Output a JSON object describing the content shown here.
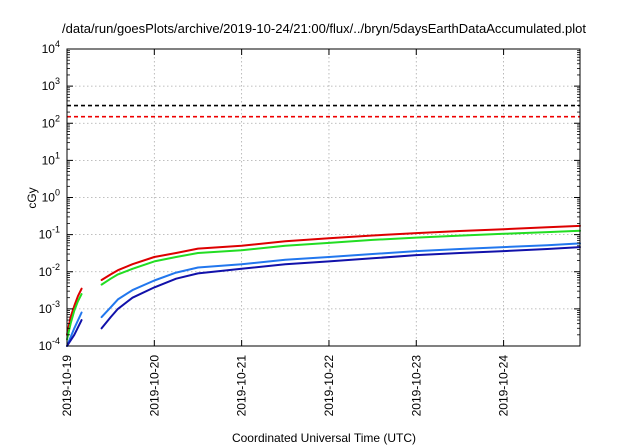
{
  "chart_data": {
    "type": "line",
    "title": "/data/run/goesPlots/archive/2019-10-24/21:00/flux/../bryn/5daysEarthDataAccumulated.plot",
    "xlabel": "Coordinated Universal Time (UTC)",
    "ylabel": "cGy",
    "y_scale": "log",
    "ylim": [
      0.0001,
      10000
    ],
    "xlim": [
      "2019-10-19T00:00",
      "2019-10-24T21:00"
    ],
    "grid": true,
    "x_ticks": [
      "2019-10-19",
      "2019-10-20",
      "2019-10-21",
      "2019-10-22",
      "2019-10-23",
      "2019-10-24"
    ],
    "y_ticks": [
      {
        "base": "10",
        "exp": "-4"
      },
      {
        "base": "10",
        "exp": "-3"
      },
      {
        "base": "10",
        "exp": "-2"
      },
      {
        "base": "10",
        "exp": "-1"
      },
      {
        "base": "10",
        "exp": "0"
      },
      {
        "base": "10",
        "exp": "1"
      },
      {
        "base": "10",
        "exp": "2"
      },
      {
        "base": "10",
        "exp": "3"
      },
      {
        "base": "10",
        "exp": "4"
      }
    ],
    "thresholds": [
      {
        "value": 300,
        "color": "#000000",
        "style": "dashed"
      },
      {
        "value": 150,
        "color": "#ee0000",
        "style": "dashed"
      }
    ],
    "series": [
      {
        "color": "#dd0000",
        "segments": [
          {
            "x": [
              "2019-10-19T00:00",
              "2019-10-19T01:00",
              "2019-10-19T02:00",
              "2019-10-19T03:00",
              "2019-10-19T04:00"
            ],
            "y": [
              0.0002,
              0.0006,
              0.0012,
              0.0022,
              0.0035
            ]
          },
          {
            "x": [
              "2019-10-19T09:30",
              "2019-10-19T12:00",
              "2019-10-19T14:00",
              "2019-10-19T18:00",
              "2019-10-20T00:00",
              "2019-10-20T06:00",
              "2019-10-20T12:00",
              "2019-10-21T00:00",
              "2019-10-21T12:00",
              "2019-10-22T00:00",
              "2019-10-22T12:00",
              "2019-10-23T00:00",
              "2019-10-23T12:00",
              "2019-10-24T00:00",
              "2019-10-24T12:00",
              "2019-10-24T21:00"
            ],
            "y": [
              0.006,
              0.0085,
              0.011,
              0.016,
              0.025,
              0.032,
              0.042,
              0.05,
              0.066,
              0.08,
              0.095,
              0.11,
              0.125,
              0.14,
              0.158,
              0.172
            ]
          }
        ]
      },
      {
        "color": "#22dd22",
        "segments": [
          {
            "x": [
              "2019-10-19T00:00",
              "2019-10-19T01:00",
              "2019-10-19T02:00",
              "2019-10-19T03:00",
              "2019-10-19T04:00"
            ],
            "y": [
              0.00015,
              0.0004,
              0.0009,
              0.0016,
              0.0025
            ]
          },
          {
            "x": [
              "2019-10-19T09:30",
              "2019-10-19T12:00",
              "2019-10-19T14:00",
              "2019-10-19T18:00",
              "2019-10-20T00:00",
              "2019-10-20T06:00",
              "2019-10-20T12:00",
              "2019-10-21T00:00",
              "2019-10-21T12:00",
              "2019-10-22T00:00",
              "2019-10-22T12:00",
              "2019-10-23T00:00",
              "2019-10-23T12:00",
              "2019-10-24T00:00",
              "2019-10-24T12:00",
              "2019-10-24T21:00"
            ],
            "y": [
              0.0045,
              0.0065,
              0.0085,
              0.012,
              0.019,
              0.025,
              0.032,
              0.038,
              0.05,
              0.06,
              0.072,
              0.083,
              0.094,
              0.105,
              0.117,
              0.127
            ]
          }
        ]
      },
      {
        "color": "#2277ee",
        "segments": [
          {
            "x": [
              "2019-10-19T00:00",
              "2019-10-19T02:00",
              "2019-10-19T04:00"
            ],
            "y": [
              0.0001,
              0.0003,
              0.0008
            ]
          },
          {
            "x": [
              "2019-10-19T09:30",
              "2019-10-19T12:00",
              "2019-10-19T14:00",
              "2019-10-19T18:00",
              "2019-10-20T00:00",
              "2019-10-20T06:00",
              "2019-10-20T12:00",
              "2019-10-21T00:00",
              "2019-10-21T12:00",
              "2019-10-22T00:00",
              "2019-10-22T12:00",
              "2019-10-23T00:00",
              "2019-10-23T12:00",
              "2019-10-24T00:00",
              "2019-10-24T12:00",
              "2019-10-24T21:00"
            ],
            "y": [
              0.0006,
              0.0011,
              0.0018,
              0.0032,
              0.0058,
              0.0095,
              0.013,
              0.016,
              0.021,
              0.025,
              0.03,
              0.036,
              0.041,
              0.046,
              0.052,
              0.058
            ]
          }
        ]
      },
      {
        "color": "#1111aa",
        "segments": [
          {
            "x": [
              "2019-10-19T00:00",
              "2019-10-19T02:00",
              "2019-10-19T04:00"
            ],
            "y": [
              0.0001,
              0.0002,
              0.0005
            ]
          },
          {
            "x": [
              "2019-10-19T09:30",
              "2019-10-19T12:00",
              "2019-10-19T14:00",
              "2019-10-19T18:00",
              "2019-10-20T00:00",
              "2019-10-20T06:00",
              "2019-10-20T12:00",
              "2019-10-21T00:00",
              "2019-10-21T12:00",
              "2019-10-22T00:00",
              "2019-10-22T12:00",
              "2019-10-23T00:00",
              "2019-10-23T12:00",
              "2019-10-24T00:00",
              "2019-10-24T12:00",
              "2019-10-24T21:00"
            ],
            "y": [
              0.0003,
              0.0006,
              0.001,
              0.002,
              0.0038,
              0.0065,
              0.009,
              0.012,
              0.016,
              0.019,
              0.023,
              0.028,
              0.032,
              0.036,
              0.041,
              0.046
            ]
          }
        ]
      }
    ]
  }
}
